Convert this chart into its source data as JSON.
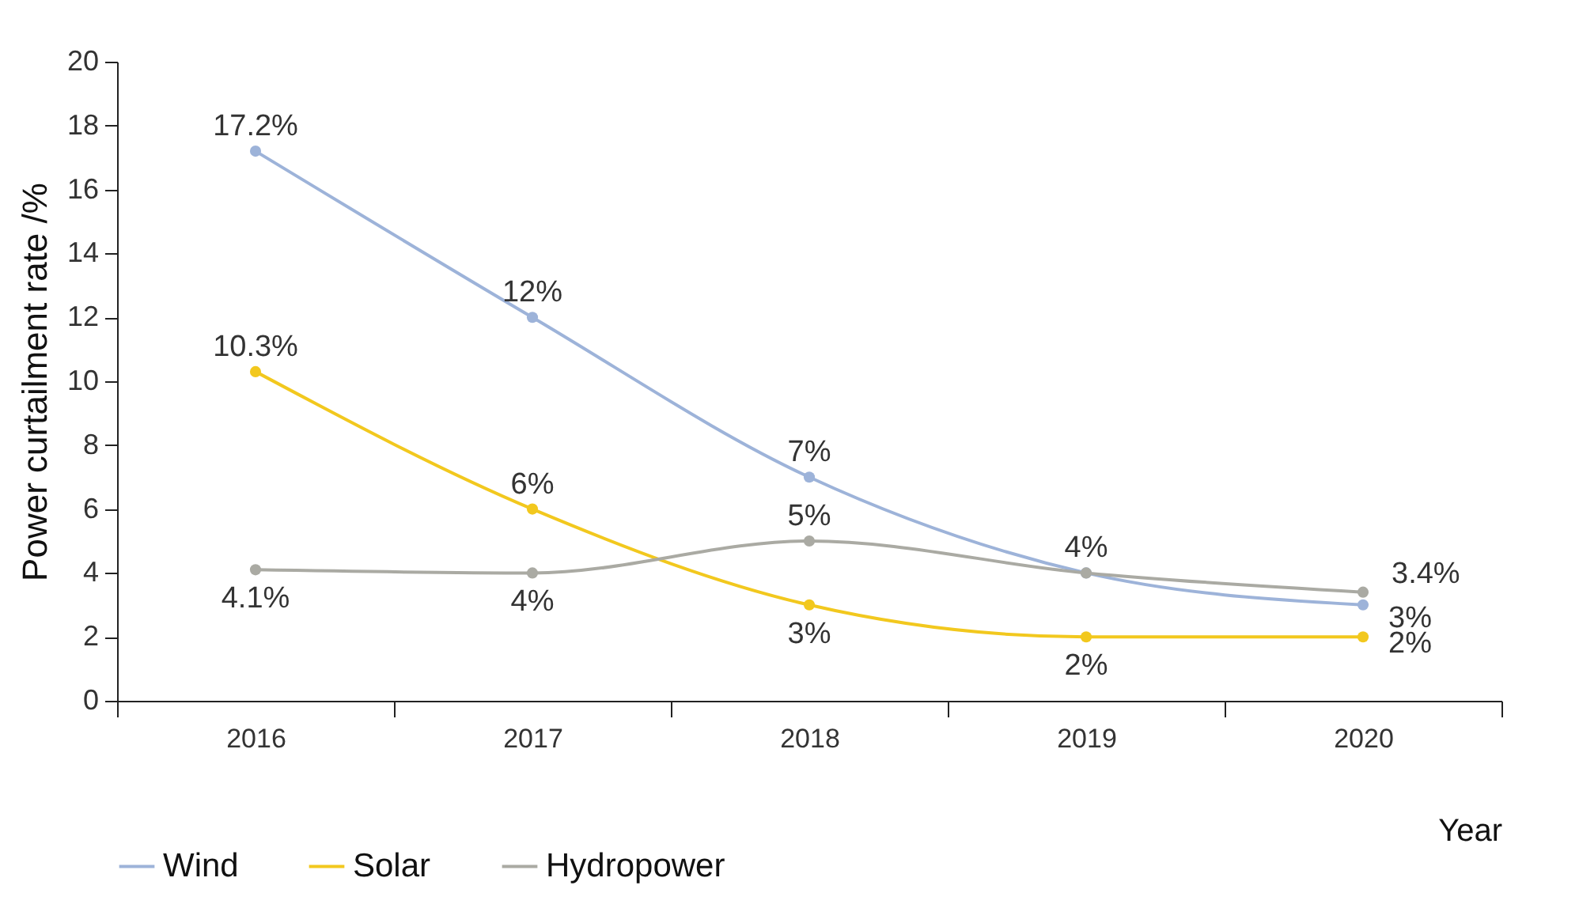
{
  "chart_data": {
    "type": "line",
    "xlabel": "Year",
    "ylabel": "Power curtailment rate /%",
    "categories": [
      "2016",
      "2017",
      "2018",
      "2019",
      "2020"
    ],
    "series": [
      {
        "name": "Wind",
        "color": "#9db3d9",
        "values": [
          17.2,
          12,
          7,
          4,
          3
        ],
        "value_labels": [
          "17.2%",
          "12%",
          "7%",
          "4%",
          "3%"
        ]
      },
      {
        "name": "Solar",
        "color": "#f2c81e",
        "values": [
          10.3,
          6,
          3,
          2,
          2
        ],
        "value_labels": [
          "10.3%",
          "6%",
          "3%",
          "2%",
          "2%"
        ]
      },
      {
        "name": "Hydropower",
        "color": "#aaaaa3",
        "values": [
          4.1,
          4,
          5,
          4,
          3.4
        ],
        "value_labels": [
          "4.1%",
          "4%",
          "5%",
          null,
          "3.4%"
        ]
      }
    ],
    "ylim": [
      0,
      20
    ],
    "yticks": [
      0,
      2,
      4,
      6,
      8,
      10,
      12,
      14,
      16,
      18,
      20
    ],
    "grid": false,
    "legend": "bottom",
    "marker": "circle",
    "line_style": "solid"
  }
}
